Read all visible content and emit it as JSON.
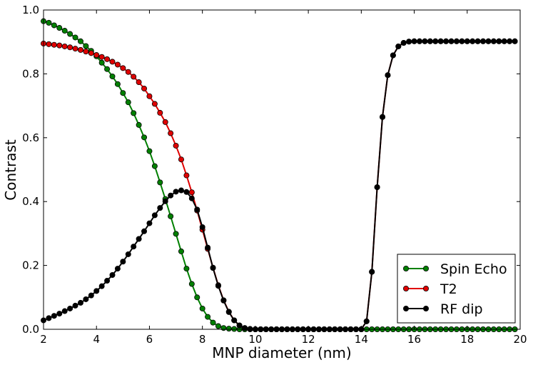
{
  "chart_data": {
    "type": "line",
    "xlabel": "MNP diameter (nm)",
    "ylabel": "Contrast",
    "xlim": [
      2,
      20
    ],
    "ylim": [
      0,
      1
    ],
    "xticks": [
      "2",
      "4",
      "6",
      "8",
      "10",
      "12",
      "14",
      "16",
      "18",
      "20"
    ],
    "yticks": [
      "0.0",
      "0.2",
      "0.4",
      "0.6",
      "0.8",
      "1.0"
    ],
    "grid": false,
    "legend_position": "bottom-right",
    "series": [
      {
        "name": "Spin Echo",
        "color": "#008000",
        "x": [
          2.0,
          2.2,
          2.4,
          2.6,
          2.8,
          3.0,
          3.2,
          3.4,
          3.6,
          3.8,
          4.0,
          4.2,
          4.4,
          4.6,
          4.8,
          5.0,
          5.2,
          5.4,
          5.6,
          5.8,
          6.0,
          6.2,
          6.4,
          6.6,
          6.8,
          7.0,
          7.2,
          7.4,
          7.6,
          7.8,
          8.0,
          8.2,
          8.4,
          8.6,
          8.8,
          9.0,
          9.2,
          9.4,
          9.6,
          9.8,
          10.0,
          10.2,
          10.4,
          10.6,
          10.8,
          11.0,
          11.2,
          11.4,
          11.6,
          11.8,
          12.0,
          12.2,
          12.4,
          12.6,
          12.8,
          13.0,
          13.2,
          13.4,
          13.6,
          13.8,
          14.0,
          14.2,
          14.4,
          14.6,
          14.8,
          15.0,
          15.2,
          15.4,
          15.6,
          15.8,
          16.0,
          16.2,
          16.4,
          16.6,
          16.8,
          17.0,
          17.2,
          17.4,
          17.6,
          17.8,
          18.0,
          18.2,
          18.4,
          18.6,
          18.8,
          19.0,
          19.2,
          19.4,
          19.6,
          19.8
        ],
        "y": [
          0.965,
          0.96,
          0.952,
          0.944,
          0.935,
          0.925,
          0.914,
          0.902,
          0.887,
          0.872,
          0.855,
          0.835,
          0.815,
          0.792,
          0.768,
          0.74,
          0.711,
          0.677,
          0.64,
          0.601,
          0.558,
          0.511,
          0.46,
          0.408,
          0.354,
          0.299,
          0.244,
          0.19,
          0.142,
          0.1,
          0.065,
          0.039,
          0.021,
          0.01,
          0.004,
          0.002,
          0.001,
          0.0,
          0.0,
          0.0,
          0.0,
          0.0,
          0.0,
          0.0,
          0.0,
          0.0,
          0.0,
          0.0,
          0.0,
          0.0,
          0.0,
          0.0,
          0.0,
          0.0,
          0.0,
          0.0,
          0.0,
          0.0,
          0.0,
          0.0,
          0.0,
          0.0,
          0.0,
          0.0,
          0.0,
          0.0,
          0.0,
          0.0,
          0.0,
          0.0,
          0.0,
          0.0,
          0.0,
          0.0,
          0.0,
          0.0,
          0.0,
          0.0,
          0.0,
          0.0,
          0.0,
          0.0,
          0.0,
          0.0,
          0.0,
          0.0,
          0.0,
          0.0,
          0.0,
          0.0
        ]
      },
      {
        "name": "T2",
        "color": "#e00000",
        "x": [
          2.0,
          2.2,
          2.4,
          2.6,
          2.8,
          3.0,
          3.2,
          3.4,
          3.6,
          3.8,
          4.0,
          4.2,
          4.4,
          4.6,
          4.8,
          5.0,
          5.2,
          5.4,
          5.6,
          5.8,
          6.0,
          6.2,
          6.4,
          6.6,
          6.8,
          7.0,
          7.2,
          7.4,
          7.6,
          7.8,
          8.0,
          8.2,
          8.4,
          8.6,
          8.8,
          9.0,
          9.2,
          9.4,
          9.6,
          9.8,
          10.0,
          10.2,
          10.4,
          10.6,
          10.8,
          11.0,
          11.2,
          11.4,
          11.6,
          11.8,
          12.0,
          12.2,
          12.4,
          12.6,
          12.8,
          13.0,
          13.2,
          13.4,
          13.6,
          13.8,
          14.0,
          14.2,
          14.4,
          14.6,
          14.8,
          15.0,
          15.2,
          15.4,
          15.6,
          15.8,
          16.0,
          16.2,
          16.4,
          16.6,
          16.8,
          17.0,
          17.2,
          17.4,
          17.6,
          17.8,
          18.0,
          18.2,
          18.4,
          18.6,
          18.8,
          19.0,
          19.2,
          19.4,
          19.6,
          19.8
        ],
        "y": [
          0.895,
          0.893,
          0.891,
          0.889,
          0.886,
          0.883,
          0.879,
          0.875,
          0.87,
          0.865,
          0.859,
          0.853,
          0.846,
          0.838,
          0.829,
          0.818,
          0.806,
          0.791,
          0.774,
          0.754,
          0.73,
          0.706,
          0.678,
          0.649,
          0.614,
          0.575,
          0.532,
          0.482,
          0.429,
          0.372,
          0.312,
          0.252,
          0.193,
          0.138,
          0.091,
          0.055,
          0.028,
          0.012,
          0.004,
          0.001,
          0.0,
          0.0,
          0.0,
          0.0,
          0.0,
          0.0,
          0.0,
          0.0,
          0.0,
          0.0,
          0.0,
          0.0,
          0.0,
          0.0,
          0.0,
          0.0,
          0.0,
          0.0,
          0.0,
          0.0,
          0.0,
          0.025,
          0.18,
          0.445,
          0.665,
          0.796,
          0.858,
          0.886,
          0.897,
          0.901,
          0.902,
          0.902,
          0.902,
          0.902,
          0.902,
          0.902,
          0.902,
          0.902,
          0.902,
          0.902,
          0.902,
          0.902,
          0.902,
          0.902,
          0.902,
          0.902,
          0.902,
          0.902,
          0.902,
          0.902
        ]
      },
      {
        "name": "RF dip",
        "color": "#000000",
        "x": [
          2.0,
          2.2,
          2.4,
          2.6,
          2.8,
          3.0,
          3.2,
          3.4,
          3.6,
          3.8,
          4.0,
          4.2,
          4.4,
          4.6,
          4.8,
          5.0,
          5.2,
          5.4,
          5.6,
          5.8,
          6.0,
          6.2,
          6.4,
          6.6,
          6.8,
          7.0,
          7.2,
          7.4,
          7.6,
          7.8,
          8.0,
          8.2,
          8.4,
          8.6,
          8.8,
          9.0,
          9.2,
          9.4,
          9.6,
          9.8,
          10.0,
          10.2,
          10.4,
          10.6,
          10.8,
          11.0,
          11.2,
          11.4,
          11.6,
          11.8,
          12.0,
          12.2,
          12.4,
          12.6,
          12.8,
          13.0,
          13.2,
          13.4,
          13.6,
          13.8,
          14.0,
          14.2,
          14.4,
          14.6,
          14.8,
          15.0,
          15.2,
          15.4,
          15.6,
          15.8,
          16.0,
          16.2,
          16.4,
          16.6,
          16.8,
          17.0,
          17.2,
          17.4,
          17.6,
          17.8,
          18.0,
          18.2,
          18.4,
          18.6,
          18.8,
          19.0,
          19.2,
          19.4,
          19.6,
          19.8
        ],
        "y": [
          0.028,
          0.035,
          0.042,
          0.049,
          0.057,
          0.065,
          0.074,
          0.083,
          0.094,
          0.106,
          0.12,
          0.135,
          0.152,
          0.17,
          0.19,
          0.212,
          0.235,
          0.259,
          0.283,
          0.307,
          0.332,
          0.357,
          0.38,
          0.401,
          0.419,
          0.431,
          0.435,
          0.43,
          0.41,
          0.375,
          0.32,
          0.256,
          0.192,
          0.136,
          0.09,
          0.054,
          0.028,
          0.012,
          0.004,
          0.001,
          0.0,
          0.0,
          0.0,
          0.0,
          0.0,
          0.0,
          0.0,
          0.0,
          0.0,
          0.0,
          0.0,
          0.0,
          0.0,
          0.0,
          0.0,
          0.0,
          0.0,
          0.0,
          0.0,
          0.0,
          0.0,
          0.025,
          0.18,
          0.445,
          0.665,
          0.796,
          0.858,
          0.886,
          0.897,
          0.901,
          0.902,
          0.902,
          0.902,
          0.902,
          0.902,
          0.902,
          0.902,
          0.902,
          0.902,
          0.902,
          0.902,
          0.902,
          0.902,
          0.902,
          0.902,
          0.902,
          0.902,
          0.902,
          0.902,
          0.902
        ]
      }
    ]
  }
}
